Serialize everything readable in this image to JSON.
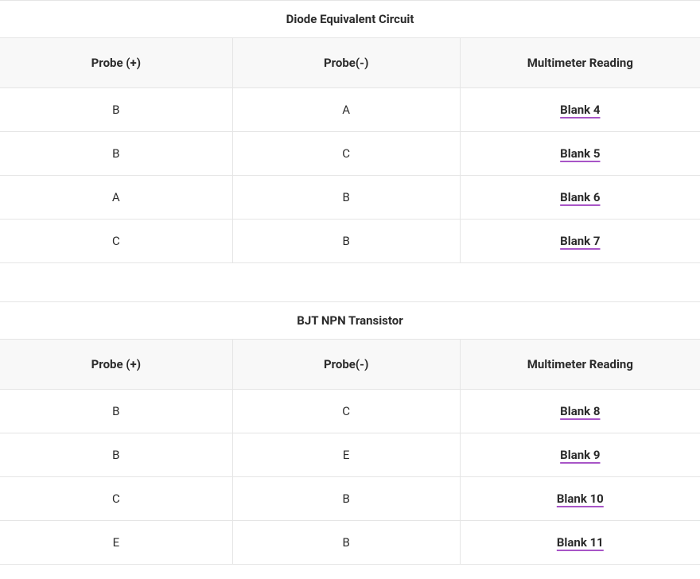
{
  "colors": {
    "text": "#2b2b2b",
    "border": "#e5e5e5",
    "header_bg": "#f8f8f8",
    "underline": "#a855c7",
    "background": "#ffffff"
  },
  "typography": {
    "title_fontsize": 15,
    "header_fontsize": 15,
    "cell_fontsize": 15,
    "title_weight": 700,
    "header_weight": 700,
    "blank_weight": 700
  },
  "sections": [
    {
      "title": "Diode Equivalent Circuit",
      "columns": [
        "Probe (+)",
        "Probe(-)",
        "Multimeter Reading"
      ],
      "column_widths_pct": [
        33.2,
        32.5,
        34.3
      ],
      "rows": [
        {
          "probe_pos": "B",
          "probe_neg": "A",
          "reading": "Blank 4"
        },
        {
          "probe_pos": "B",
          "probe_neg": "C",
          "reading": "Blank 5"
        },
        {
          "probe_pos": "A",
          "probe_neg": "B",
          "reading": "Blank 6"
        },
        {
          "probe_pos": "C",
          "probe_neg": "B",
          "reading": "Blank 7"
        }
      ]
    },
    {
      "title": "BJT NPN Transistor",
      "columns": [
        "Probe (+)",
        "Probe(-)",
        "Multimeter Reading"
      ],
      "column_widths_pct": [
        33.2,
        32.5,
        34.3
      ],
      "rows": [
        {
          "probe_pos": "B",
          "probe_neg": "C",
          "reading": "Blank 8"
        },
        {
          "probe_pos": "B",
          "probe_neg": "E",
          "reading": "Blank 9"
        },
        {
          "probe_pos": "C",
          "probe_neg": "B",
          "reading": "Blank 10"
        },
        {
          "probe_pos": "E",
          "probe_neg": "B",
          "reading": "Blank 11"
        }
      ]
    }
  ]
}
